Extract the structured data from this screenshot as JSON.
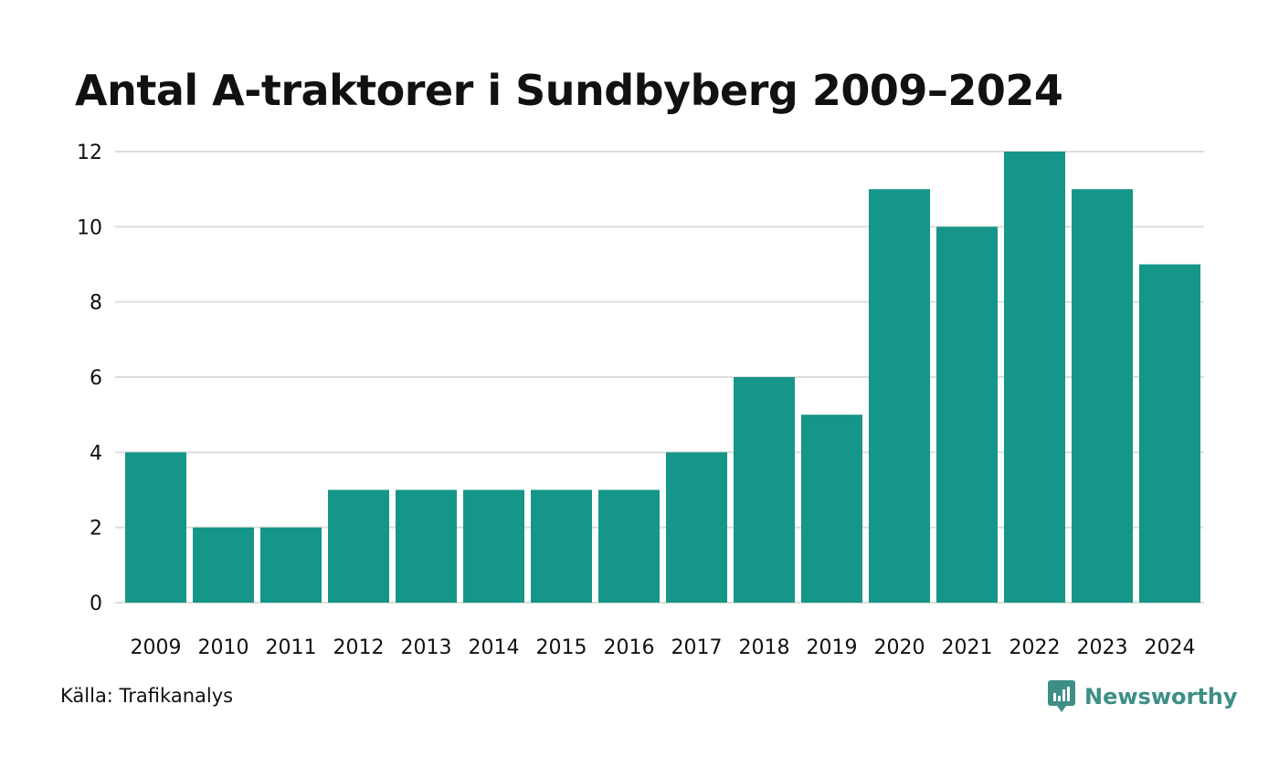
{
  "brand": {
    "name": "Newsworthy",
    "color": "#3d8f86"
  },
  "source": "Källa: Trafikanalys",
  "colors": {
    "bar": "#159688",
    "grid": "#dddddd"
  },
  "chart_data": {
    "type": "bar",
    "title": "Antal A-traktorer i Sundbyberg 2009–2024",
    "xlabel": "",
    "ylabel": "",
    "categories": [
      "2009",
      "2010",
      "2011",
      "2012",
      "2013",
      "2014",
      "2015",
      "2016",
      "2017",
      "2018",
      "2019",
      "2020",
      "2021",
      "2022",
      "2023",
      "2024"
    ],
    "values": [
      4,
      2,
      2,
      3,
      3,
      3,
      3,
      3,
      4,
      6,
      5,
      11,
      10,
      12,
      11,
      9
    ],
    "yticks": [
      "0",
      "2",
      "4",
      "6",
      "8",
      "10",
      "12"
    ],
    "ylim": [
      0,
      12
    ],
    "grid": true,
    "legend": "none"
  }
}
